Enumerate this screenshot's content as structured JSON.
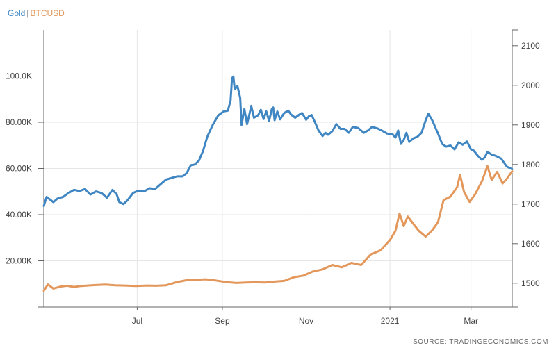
{
  "legend": {
    "gold": "Gold",
    "separator": "|",
    "btc": "BTCUSD"
  },
  "source": "SOURCE: TRADINGECONOMICS.COM",
  "chart_data": {
    "type": "line",
    "grid": true,
    "legend_position": "top-left",
    "x_labels": [
      "Jul",
      "Sep",
      "Nov",
      "2021",
      "Mar"
    ],
    "x_label_dates": [
      "2020-07-01",
      "2020-09-01",
      "2020-11-01",
      "2021-01-01",
      "2021-03-01"
    ],
    "xlim": [
      "2020-04-24",
      "2021-03-31"
    ],
    "y_left": {
      "ticks": [
        "20.00K",
        "40.00K",
        "60.00K",
        "80.00K",
        "100.0K"
      ],
      "tick_values": [
        20000,
        40000,
        60000,
        80000,
        100000
      ],
      "lim": [
        0,
        120000
      ]
    },
    "y_right": {
      "ticks": [
        "1500",
        "1600",
        "1700",
        "1800",
        "1900",
        "2000",
        "2100"
      ],
      "tick_values": [
        1500,
        1600,
        1700,
        1800,
        1900,
        2000,
        2100
      ],
      "lim": [
        1440,
        2140
      ]
    },
    "colors": {
      "gold": "#3f86c2",
      "btc": "#e3975a"
    },
    "series": [
      {
        "name": "Gold",
        "axis": "right",
        "points": [
          [
            "2020-04-24",
            1695
          ],
          [
            "2020-04-26",
            1718
          ],
          [
            "2020-05-01",
            1705
          ],
          [
            "2020-05-04",
            1714
          ],
          [
            "2020-05-08",
            1718
          ],
          [
            "2020-05-12",
            1728
          ],
          [
            "2020-05-16",
            1736
          ],
          [
            "2020-05-20",
            1733
          ],
          [
            "2020-05-24",
            1738
          ],
          [
            "2020-05-28",
            1724
          ],
          [
            "2020-06-01",
            1732
          ],
          [
            "2020-06-05",
            1728
          ],
          [
            "2020-06-09",
            1716
          ],
          [
            "2020-06-13",
            1736
          ],
          [
            "2020-06-16",
            1725
          ],
          [
            "2020-06-18",
            1705
          ],
          [
            "2020-06-21",
            1700
          ],
          [
            "2020-06-24",
            1710
          ],
          [
            "2020-06-28",
            1728
          ],
          [
            "2020-07-02",
            1734
          ],
          [
            "2020-07-06",
            1732
          ],
          [
            "2020-07-10",
            1740
          ],
          [
            "2020-07-14",
            1738
          ],
          [
            "2020-07-18",
            1750
          ],
          [
            "2020-07-22",
            1762
          ],
          [
            "2020-07-26",
            1766
          ],
          [
            "2020-07-30",
            1770
          ],
          [
            "2020-08-03",
            1770
          ],
          [
            "2020-08-06",
            1778
          ],
          [
            "2020-08-09",
            1798
          ],
          [
            "2020-08-12",
            1800
          ],
          [
            "2020-08-15",
            1810
          ],
          [
            "2020-08-18",
            1835
          ],
          [
            "2020-08-21",
            1870
          ],
          [
            "2020-08-25",
            1900
          ],
          [
            "2020-08-29",
            1924
          ],
          [
            "2020-09-02",
            1934
          ],
          [
            "2020-09-05",
            1936
          ],
          [
            "2020-09-07",
            1962
          ],
          [
            "2020-09-08",
            2018
          ],
          [
            "2020-09-09",
            2022
          ],
          [
            "2020-09-10",
            1990
          ],
          [
            "2020-09-12",
            1998
          ],
          [
            "2020-09-14",
            1968
          ],
          [
            "2020-09-15",
            1900
          ],
          [
            "2020-09-17",
            1940
          ],
          [
            "2020-09-19",
            1902
          ],
          [
            "2020-09-21",
            1932
          ],
          [
            "2020-09-22",
            1948
          ],
          [
            "2020-09-24",
            1918
          ],
          [
            "2020-09-27",
            1924
          ],
          [
            "2020-09-29",
            1938
          ],
          [
            "2020-10-01",
            1915
          ],
          [
            "2020-10-03",
            1934
          ],
          [
            "2020-10-05",
            1910
          ],
          [
            "2020-10-07",
            1940
          ],
          [
            "2020-10-08",
            1944
          ],
          [
            "2020-10-09",
            1912
          ],
          [
            "2020-10-11",
            1934
          ],
          [
            "2020-10-13",
            1914
          ],
          [
            "2020-10-16",
            1930
          ],
          [
            "2020-10-19",
            1936
          ],
          [
            "2020-10-21",
            1926
          ],
          [
            "2020-10-24",
            1918
          ],
          [
            "2020-10-27",
            1926
          ],
          [
            "2020-10-29",
            1930
          ],
          [
            "2020-11-01",
            1913
          ],
          [
            "2020-11-03",
            1922
          ],
          [
            "2020-11-05",
            1925
          ],
          [
            "2020-11-07",
            1910
          ],
          [
            "2020-11-10",
            1886
          ],
          [
            "2020-11-13",
            1872
          ],
          [
            "2020-11-15",
            1880
          ],
          [
            "2020-11-17",
            1875
          ],
          [
            "2020-11-20",
            1884
          ],
          [
            "2020-11-23",
            1902
          ],
          [
            "2020-11-26",
            1890
          ],
          [
            "2020-11-29",
            1890
          ],
          [
            "2020-12-02",
            1880
          ],
          [
            "2020-12-05",
            1895
          ],
          [
            "2020-12-09",
            1892
          ],
          [
            "2020-12-13",
            1880
          ],
          [
            "2020-12-16",
            1886
          ],
          [
            "2020-12-19",
            1895
          ],
          [
            "2020-12-23",
            1891
          ],
          [
            "2020-12-26",
            1886
          ],
          [
            "2020-12-30",
            1878
          ],
          [
            "2021-01-03",
            1876
          ],
          [
            "2021-01-05",
            1868
          ],
          [
            "2021-01-07",
            1886
          ],
          [
            "2021-01-09",
            1852
          ],
          [
            "2021-01-11",
            1862
          ],
          [
            "2021-01-13",
            1880
          ],
          [
            "2021-01-15",
            1857
          ],
          [
            "2021-01-18",
            1866
          ],
          [
            "2021-01-21",
            1870
          ],
          [
            "2021-01-24",
            1880
          ],
          [
            "2021-01-27",
            1912
          ],
          [
            "2021-01-29",
            1928
          ],
          [
            "2021-02-01",
            1910
          ],
          [
            "2021-02-03",
            1894
          ],
          [
            "2021-02-05",
            1878
          ],
          [
            "2021-02-08",
            1852
          ],
          [
            "2021-02-11",
            1845
          ],
          [
            "2021-02-14",
            1848
          ],
          [
            "2021-02-17",
            1838
          ],
          [
            "2021-02-20",
            1856
          ],
          [
            "2021-02-23",
            1850
          ],
          [
            "2021-02-26",
            1858
          ],
          [
            "2021-03-01",
            1838
          ],
          [
            "2021-03-03",
            1835
          ],
          [
            "2021-03-06",
            1822
          ],
          [
            "2021-03-09",
            1812
          ],
          [
            "2021-03-11",
            1818
          ],
          [
            "2021-03-13",
            1832
          ],
          [
            "2021-03-16",
            1825
          ],
          [
            "2021-03-19",
            1822
          ],
          [
            "2021-03-23",
            1815
          ],
          [
            "2021-03-27",
            1795
          ],
          [
            "2021-03-31",
            1788
          ]
        ]
      },
      {
        "name": "BTCUSD",
        "axis": "left",
        "points": [
          [
            "2020-04-24",
            7000
          ],
          [
            "2020-04-27",
            9800
          ],
          [
            "2020-05-01",
            8000
          ],
          [
            "2020-05-06",
            8800
          ],
          [
            "2020-05-11",
            9200
          ],
          [
            "2020-05-16",
            8700
          ],
          [
            "2020-05-21",
            9100
          ],
          [
            "2020-05-26",
            9300
          ],
          [
            "2020-06-01",
            9500
          ],
          [
            "2020-06-08",
            9700
          ],
          [
            "2020-06-15",
            9400
          ],
          [
            "2020-06-22",
            9300
          ],
          [
            "2020-06-30",
            9100
          ],
          [
            "2020-07-08",
            9300
          ],
          [
            "2020-07-15",
            9200
          ],
          [
            "2020-07-22",
            9400
          ],
          [
            "2020-07-30",
            10800
          ],
          [
            "2020-08-06",
            11600
          ],
          [
            "2020-08-13",
            11800
          ],
          [
            "2020-08-20",
            12000
          ],
          [
            "2020-08-27",
            11500
          ],
          [
            "2020-09-04",
            10800
          ],
          [
            "2020-09-11",
            10400
          ],
          [
            "2020-09-18",
            10600
          ],
          [
            "2020-09-25",
            10700
          ],
          [
            "2020-10-02",
            10600
          ],
          [
            "2020-10-09",
            11000
          ],
          [
            "2020-10-16",
            11300
          ],
          [
            "2020-10-23",
            12900
          ],
          [
            "2020-10-30",
            13600
          ],
          [
            "2020-11-06",
            15400
          ],
          [
            "2020-11-13",
            16300
          ],
          [
            "2020-11-20",
            18200
          ],
          [
            "2020-11-27",
            17200
          ],
          [
            "2020-12-04",
            19100
          ],
          [
            "2020-12-11",
            18200
          ],
          [
            "2020-12-18",
            22800
          ],
          [
            "2020-12-25",
            24500
          ],
          [
            "2021-01-01",
            29000
          ],
          [
            "2021-01-05",
            33000
          ],
          [
            "2021-01-08",
            40500
          ],
          [
            "2021-01-11",
            35000
          ],
          [
            "2021-01-14",
            39200
          ],
          [
            "2021-01-18",
            36000
          ],
          [
            "2021-01-22",
            33000
          ],
          [
            "2021-01-27",
            30500
          ],
          [
            "2021-02-01",
            33400
          ],
          [
            "2021-02-05",
            36800
          ],
          [
            "2021-02-09",
            46300
          ],
          [
            "2021-02-14",
            47800
          ],
          [
            "2021-02-19",
            52000
          ],
          [
            "2021-02-21",
            57300
          ],
          [
            "2021-02-24",
            49700
          ],
          [
            "2021-02-28",
            45500
          ],
          [
            "2021-03-04",
            48800
          ],
          [
            "2021-03-09",
            54500
          ],
          [
            "2021-03-13",
            61000
          ],
          [
            "2021-03-16",
            55000
          ],
          [
            "2021-03-20",
            58500
          ],
          [
            "2021-03-24",
            53500
          ],
          [
            "2021-03-27",
            55500
          ],
          [
            "2021-03-31",
            58800
          ]
        ]
      }
    ]
  }
}
